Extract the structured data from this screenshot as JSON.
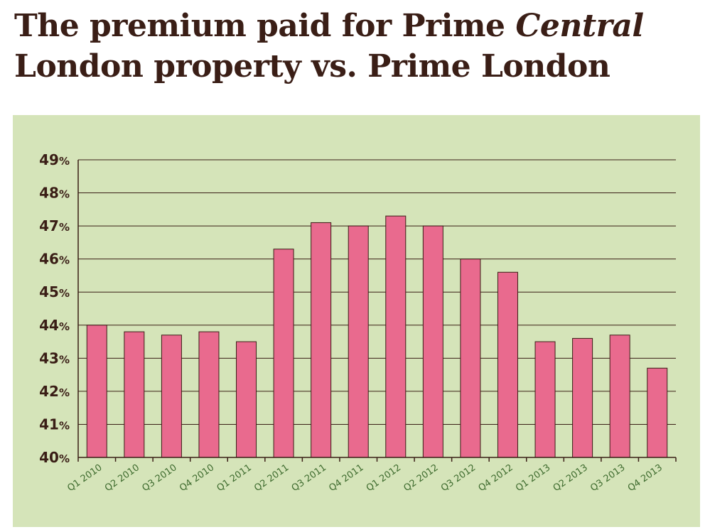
{
  "title": {
    "line1_prefix": "The premium paid for Prime ",
    "line1_italic": "Central",
    "line2": "London property vs. Prime London"
  },
  "chart_data": {
    "type": "bar",
    "title": "The premium paid for Prime Central London property vs. Prime London",
    "xlabel": "",
    "ylabel": "",
    "categories": [
      "Q1 2010",
      "Q2 2010",
      "Q3 2010",
      "Q4 2010",
      "Q1 2011",
      "Q2 2011",
      "Q3 2011",
      "Q4 2011",
      "Q1 2012",
      "Q2 2012",
      "Q3 2012",
      "Q4 2012",
      "Q1 2013",
      "Q2 2013",
      "Q3 2013",
      "Q4 2013"
    ],
    "values": [
      44.0,
      43.8,
      43.7,
      43.8,
      43.5,
      46.3,
      47.1,
      47.0,
      47.3,
      47.0,
      46.0,
      45.6,
      43.5,
      43.6,
      43.7,
      42.7
    ],
    "ylim": [
      40,
      49
    ],
    "yticks": [
      40,
      41,
      42,
      43,
      44,
      45,
      46,
      47,
      48,
      49
    ],
    "ytick_suffix": "%",
    "grid": true,
    "colors": {
      "bar": "#e96a8e",
      "background": "#d5e4b9",
      "axis": "#3a1e16",
      "xtick": "#3e6b2e"
    }
  }
}
